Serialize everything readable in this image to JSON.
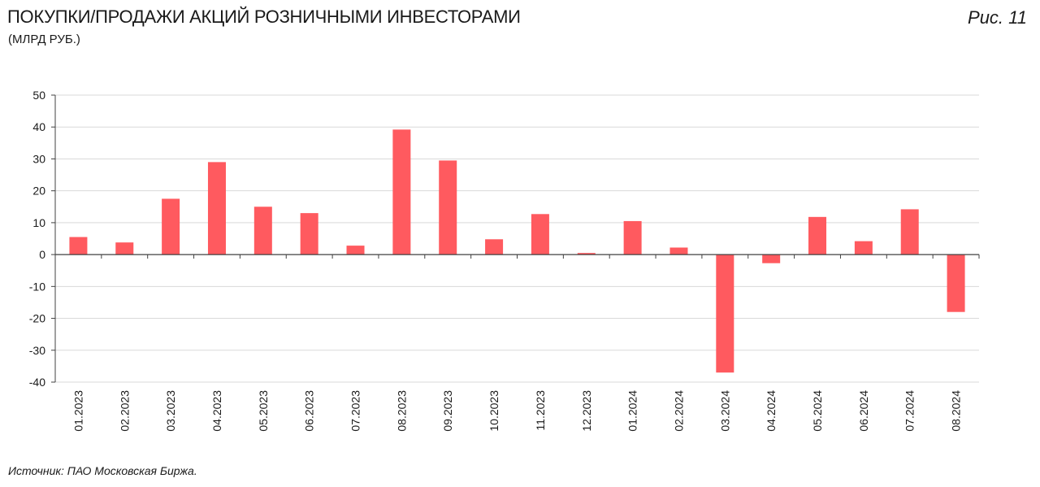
{
  "header": {
    "title": "ПОКУПКИ/ПРОДАЖИ АКЦИЙ РОЗНИЧНЫМИ ИНВЕСТОРАМИ",
    "subtitle": "(МЛРД РУБ.)",
    "figure_label": "Рис. 11"
  },
  "footer": {
    "source": "Источник: ПАО Московская Биржа."
  },
  "chart_data": {
    "type": "bar",
    "categories": [
      "01.2023",
      "02.2023",
      "03.2023",
      "04.2023",
      "05.2023",
      "06.2023",
      "07.2023",
      "08.2023",
      "09.2023",
      "10.2023",
      "11.2023",
      "12.2023",
      "01.2024",
      "02.2024",
      "03.2024",
      "04.2024",
      "05.2024",
      "06.2024",
      "07.2024",
      "08.2024"
    ],
    "values": [
      5.5,
      3.8,
      17.5,
      29.0,
      15.0,
      13.0,
      2.8,
      39.2,
      29.5,
      4.8,
      12.7,
      0.5,
      10.5,
      2.2,
      -37.0,
      -2.7,
      11.8,
      4.2,
      14.2,
      -18.0
    ],
    "ylim": [
      -40,
      50
    ],
    "yticks": [
      50,
      40,
      30,
      20,
      10,
      0,
      -10,
      -20,
      -30,
      -40
    ],
    "grid": true,
    "bar_color": "#ff5a5f",
    "grid_color": "#d9d9d9",
    "axis_color": "#404040"
  }
}
